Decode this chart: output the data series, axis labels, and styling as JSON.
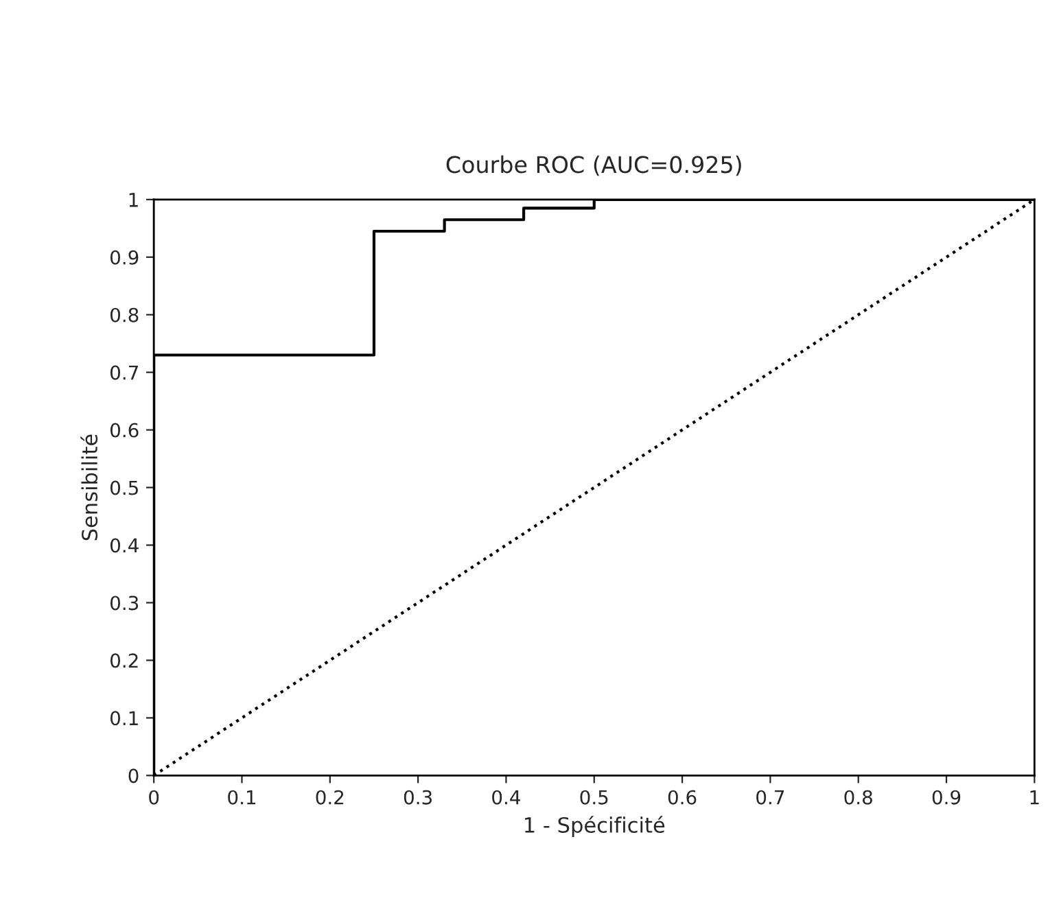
{
  "chart_data": {
    "type": "line",
    "title": "Courbe ROC (AUC=0.925)",
    "xlabel": "1 - Spécificité",
    "ylabel": "Sensibilité",
    "series": [
      {
        "color": "#000000",
        "line_style": "solid",
        "x": [
          0,
          0,
          0.25,
          0.25,
          0.33,
          0.33,
          0.42,
          0.42,
          0.5,
          0.5,
          1
        ],
        "values": [
          0,
          0.73,
          0.73,
          0.945,
          0.945,
          0.965,
          0.965,
          0.985,
          0.985,
          1,
          1
        ]
      },
      {
        "color": "#000000",
        "line_style": "dotted",
        "x": [
          0,
          1
        ],
        "values": [
          0,
          1
        ]
      }
    ],
    "xlim": [
      0,
      1
    ],
    "ylim": [
      0,
      1
    ],
    "xticks": [
      0,
      0.1,
      0.2,
      0.3,
      0.4,
      0.5,
      0.6,
      0.7,
      0.8,
      0.9,
      1
    ],
    "yticks": [
      0,
      0.1,
      0.2,
      0.3,
      0.4,
      0.5,
      0.6,
      0.7,
      0.8,
      0.9,
      1
    ],
    "grid": false,
    "legend": false
  }
}
